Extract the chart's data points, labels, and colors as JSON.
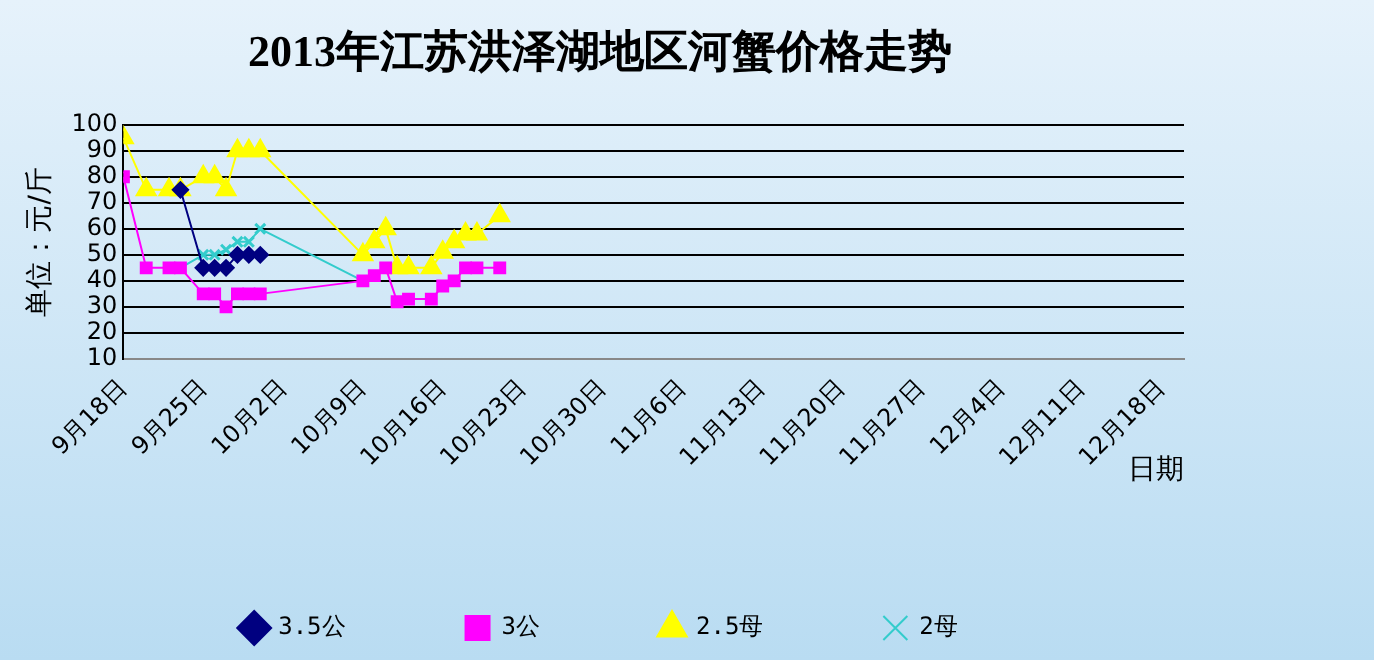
{
  "chart_data": {
    "type": "line",
    "title": "2013年江苏洪泽湖地区河蟹价格走势",
    "xlabel": "日期",
    "ylabel": "单位：元/斤",
    "x": [
      "2013-09-18",
      "2013-09-20",
      "2013-09-22",
      "2013-09-23",
      "2013-09-25",
      "2013-09-26",
      "2013-09-27",
      "2013-09-28",
      "2013-09-29",
      "2013-09-30",
      "2013-10-09",
      "2013-10-10",
      "2013-10-11",
      "2013-10-12",
      "2013-10-13",
      "2013-10-15",
      "2013-10-16",
      "2013-10-17",
      "2013-10-18",
      "2013-10-19",
      "2013-10-21"
    ],
    "series": [
      {
        "name": "3.5公",
        "color": "#000080",
        "marker": "diamond",
        "values": [
          null,
          null,
          null,
          75,
          45,
          45,
          45,
          50,
          50,
          50,
          null,
          null,
          null,
          null,
          null,
          null,
          null,
          null,
          null,
          null,
          null
        ]
      },
      {
        "name": "3公",
        "color": "#ff00ff",
        "marker": "square",
        "values": [
          80,
          45,
          45,
          45,
          35,
          35,
          30,
          35,
          35,
          35,
          40,
          42,
          45,
          32,
          33,
          33,
          38,
          40,
          45,
          45,
          45
        ]
      },
      {
        "name": "2.5母",
        "color": "#ffff00",
        "marker": "triangle",
        "values": [
          95,
          75,
          75,
          75,
          80,
          80,
          75,
          90,
          90,
          90,
          50,
          55,
          60,
          45,
          45,
          45,
          51,
          55,
          58,
          58,
          65
        ]
      },
      {
        "name": "2母",
        "color": "#33cccc",
        "marker": "cross",
        "values": [
          null,
          null,
          null,
          45,
          50,
          50,
          52,
          55,
          55,
          60,
          40,
          null,
          null,
          null,
          null,
          null,
          null,
          null,
          null,
          null,
          null
        ]
      }
    ],
    "xlim": [
      "2013-09-18",
      "2013-12-20"
    ],
    "xticks": [
      {
        "value": "2013-09-18",
        "label": "9月18日"
      },
      {
        "value": "2013-09-25",
        "label": "9月25日"
      },
      {
        "value": "2013-10-02",
        "label": "10月2日"
      },
      {
        "value": "2013-10-09",
        "label": "10月9日"
      },
      {
        "value": "2013-10-16",
        "label": "10月16日"
      },
      {
        "value": "2013-10-23",
        "label": "10月23日"
      },
      {
        "value": "2013-10-30",
        "label": "10月30日"
      },
      {
        "value": "2013-11-06",
        "label": "11月6日"
      },
      {
        "value": "2013-11-13",
        "label": "11月13日"
      },
      {
        "value": "2013-11-20",
        "label": "11月20日"
      },
      {
        "value": "2013-11-27",
        "label": "11月27日"
      },
      {
        "value": "2013-12-04",
        "label": "12月4日"
      },
      {
        "value": "2013-12-11",
        "label": "12月11日"
      },
      {
        "value": "2013-12-18",
        "label": "12月18日"
      }
    ],
    "ylim": [
      10,
      100
    ],
    "yticks": [
      10,
      20,
      30,
      40,
      50,
      60,
      70,
      80,
      90,
      100
    ],
    "grid": "y",
    "legend": "bottom"
  }
}
